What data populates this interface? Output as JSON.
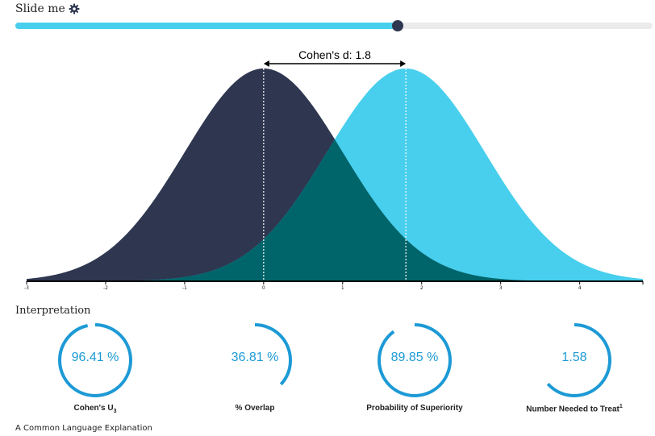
{
  "slider": {
    "title": "Slide me",
    "value_fraction": 0.6
  },
  "chart_data": {
    "type": "area",
    "annotation": "Cohen's d: 1.8",
    "cohens_d": 1.8,
    "xlim": [
      -3,
      4.8
    ],
    "xticks": [
      -3,
      -2,
      -1,
      0,
      1,
      2,
      3,
      4
    ],
    "series": [
      {
        "mean": 0,
        "sd": 1,
        "color": "#2e3650"
      },
      {
        "mean": 1.8,
        "sd": 1,
        "color": "#48cfed"
      }
    ],
    "overlap_color": "#00656a"
  },
  "interpretation": {
    "title": "Interpretation",
    "metrics": [
      {
        "value": "96.41 %",
        "label": "Cohen's U",
        "sub": "3",
        "sup": "",
        "fraction": 0.9641
      },
      {
        "value": "36.81 %",
        "label": "% Overlap",
        "sub": "",
        "sup": "",
        "fraction": 0.3681
      },
      {
        "value": "89.85 %",
        "label": "Probability of Superiority",
        "sub": "",
        "sup": "",
        "fraction": 0.8985
      },
      {
        "value": "1.58",
        "label": "Number Needed to Treat",
        "sub": "",
        "sup": "1",
        "fraction": 0.6329
      }
    ]
  },
  "footer": {
    "text": "A Common Language Explanation"
  },
  "colors": {
    "ring": "#1d9ad6",
    "accent": "#48cfed",
    "dark": "#2e3650"
  }
}
